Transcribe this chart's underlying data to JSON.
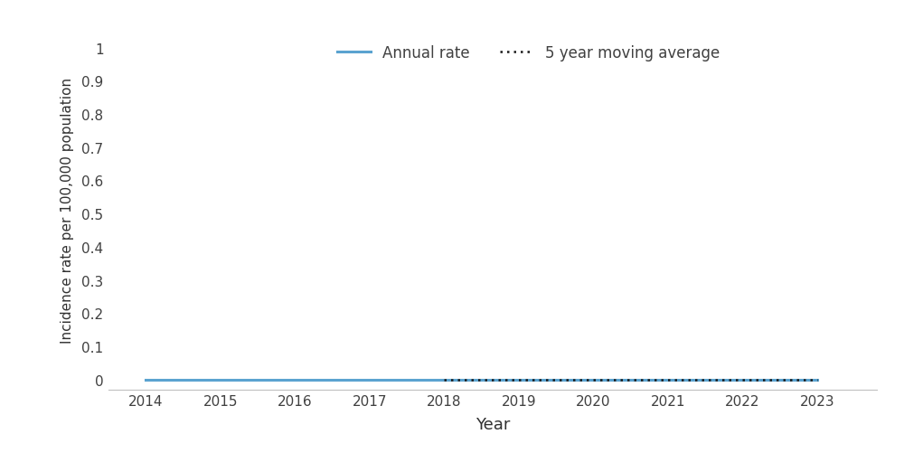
{
  "years": [
    2014,
    2015,
    2016,
    2017,
    2018,
    2019,
    2020,
    2021,
    2022,
    2023
  ],
  "annual_rate": [
    0,
    0,
    0,
    0,
    0,
    0,
    0,
    0,
    0,
    0
  ],
  "moving_avg": [
    null,
    null,
    null,
    null,
    0,
    0,
    0,
    0,
    0,
    0
  ],
  "annual_rate_color": "#5ba3d0",
  "moving_avg_color": "#1a1a1a",
  "ylabel": "Incidence rate per 100,000 population",
  "xlabel": "Year",
  "yticks": [
    0,
    0.1,
    0.2,
    0.3,
    0.4,
    0.5,
    0.6,
    0.7,
    0.8,
    0.9,
    1
  ],
  "ylim": [
    -0.03,
    1.05
  ],
  "xlim": [
    2013.5,
    2023.8
  ],
  "legend_annual": "Annual rate",
  "legend_moving": "5 year moving average",
  "background_color": "#ffffff",
  "annual_linewidth": 2.2,
  "moving_linewidth": 1.8,
  "bottom_spine_color": "#c0c0c0"
}
